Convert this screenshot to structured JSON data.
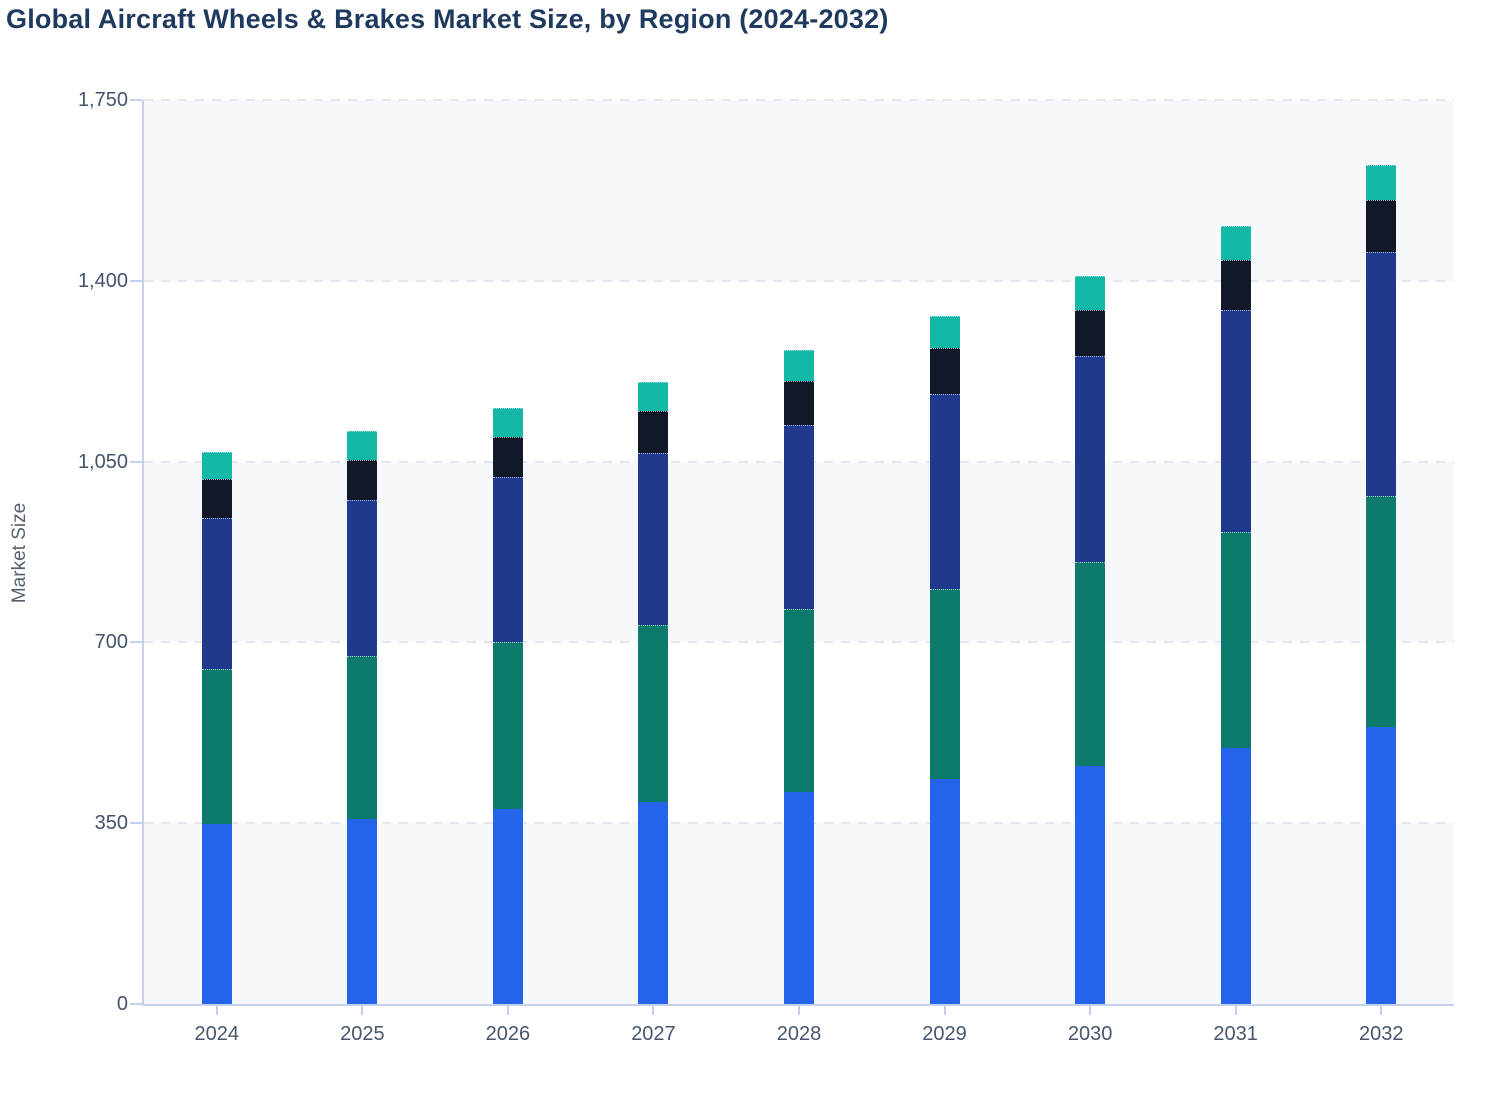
{
  "page": {
    "title": "Global Aircraft Wheels & Brakes Market Size, by Region (2024-2032)"
  },
  "chart_data": {
    "type": "bar",
    "stacked": true,
    "title": "Global Aircraft Wheels & Brakes Market Size, by Region (2024-2032)",
    "xlabel": "",
    "ylabel": "Market Size",
    "ylim": [
      0,
      1750
    ],
    "y_ticks": [
      "0",
      "350",
      "700",
      "1,050",
      "1,400",
      "1,750"
    ],
    "y_tick_values": [
      0,
      350,
      700,
      1050,
      1400,
      1750
    ],
    "categories": [
      "2024",
      "2025",
      "2026",
      "2027",
      "2028",
      "2029",
      "2030",
      "2031",
      "2032"
    ],
    "series": [
      {
        "name": "Segment 1 (blue, bottom)",
        "color": "#2563eb",
        "values": [
          348,
          359,
          377,
          391,
          411,
          436,
          461,
          495,
          536
        ]
      },
      {
        "name": "Segment 2 (teal green)",
        "color": "#0e7a6b",
        "values": [
          301,
          315,
          323,
          342,
          354,
          368,
          394,
          419,
          447
        ]
      },
      {
        "name": "Segment 3 (navy blue)",
        "color": "#20398c",
        "values": [
          292,
          301,
          321,
          334,
          355,
          377,
          399,
          430,
          472
        ]
      },
      {
        "name": "Segment 4 (dark navy)",
        "color": "#111827",
        "values": [
          75,
          78,
          77,
          81,
          86,
          89,
          90,
          97,
          102
        ]
      },
      {
        "name": "Segment 5 (bright teal, top)",
        "color": "#14b8a6",
        "values": [
          52,
          57,
          56,
          57,
          60,
          61,
          66,
          66,
          68
        ]
      }
    ],
    "totals": [
      1068,
      1110,
      1154,
      1205,
      1266,
      1331,
      1410,
      1507,
      1625
    ],
    "legend_position": "none",
    "grid": "horizontal-dashed",
    "plot_background": "alternating horizontal bands #f7f8fb / #ffffff"
  },
  "style": {
    "title_color": "#1f3a5f",
    "axis_line_color": "#c5d1ec",
    "gridline_color": "#e4e7ee",
    "tick_label_color": "#44536a",
    "y_axis_title_color": "#55606f",
    "band_color": "#f7f8fb"
  }
}
